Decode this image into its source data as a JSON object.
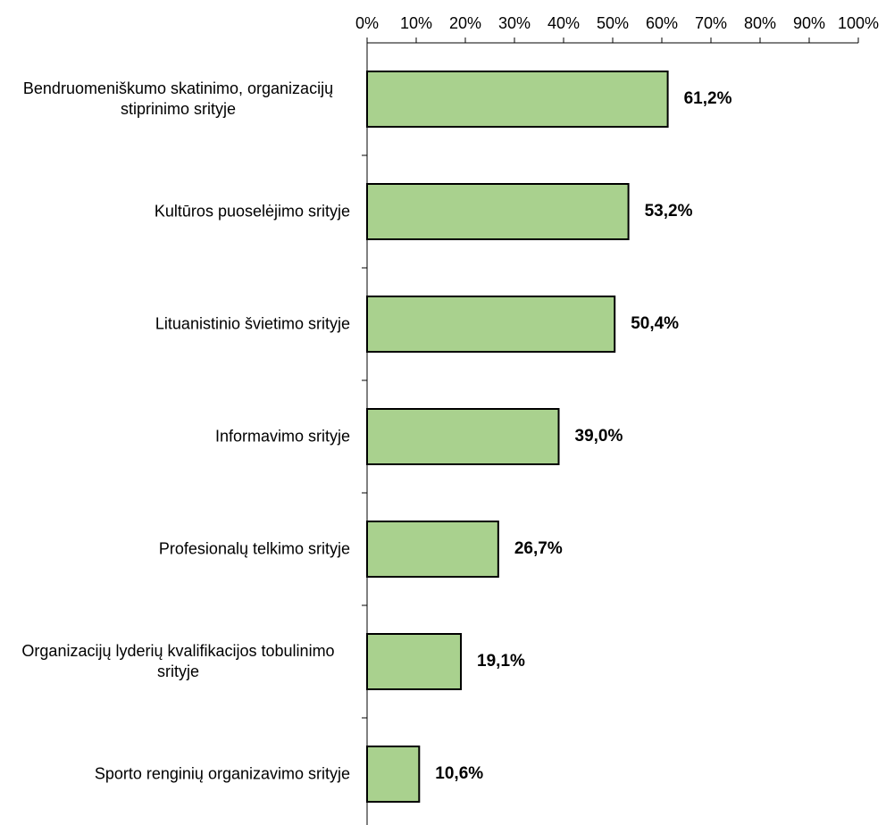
{
  "chart_data": {
    "type": "bar",
    "orientation": "horizontal",
    "categories": [
      "Bendruomeniškumo skatinimo, organizacijų stiprinimo srityje",
      "Kultūros puoselėjimo srityje",
      "Lituanistinio švietimo srityje",
      "Informavimo srityje",
      "Profesionalų telkimo srityje",
      "Organizacijų lyderių kvalifikacijos tobulinimo srityje",
      "Sporto renginių organizavimo srityje"
    ],
    "values": [
      61.2,
      53.2,
      50.4,
      39.0,
      26.7,
      19.1,
      10.6
    ],
    "value_labels": [
      "61,2%",
      "53,2%",
      "50,4%",
      "39,0%",
      "26,7%",
      "19,1%",
      "10,6%"
    ],
    "color": "#a9d18e",
    "xlim": [
      0,
      100
    ],
    "xticks": [
      {
        "value": 0,
        "label": "0%"
      },
      {
        "value": 10,
        "label": "10%"
      },
      {
        "value": 20,
        "label": "20%"
      },
      {
        "value": 30,
        "label": "30%"
      },
      {
        "value": 40,
        "label": "40%"
      },
      {
        "value": 50,
        "label": "50%"
      },
      {
        "value": 60,
        "label": "60%"
      },
      {
        "value": 70,
        "label": "70%"
      },
      {
        "value": 80,
        "label": "80%"
      },
      {
        "value": 90,
        "label": "90%"
      },
      {
        "value": 100,
        "label": "100%"
      }
    ]
  }
}
